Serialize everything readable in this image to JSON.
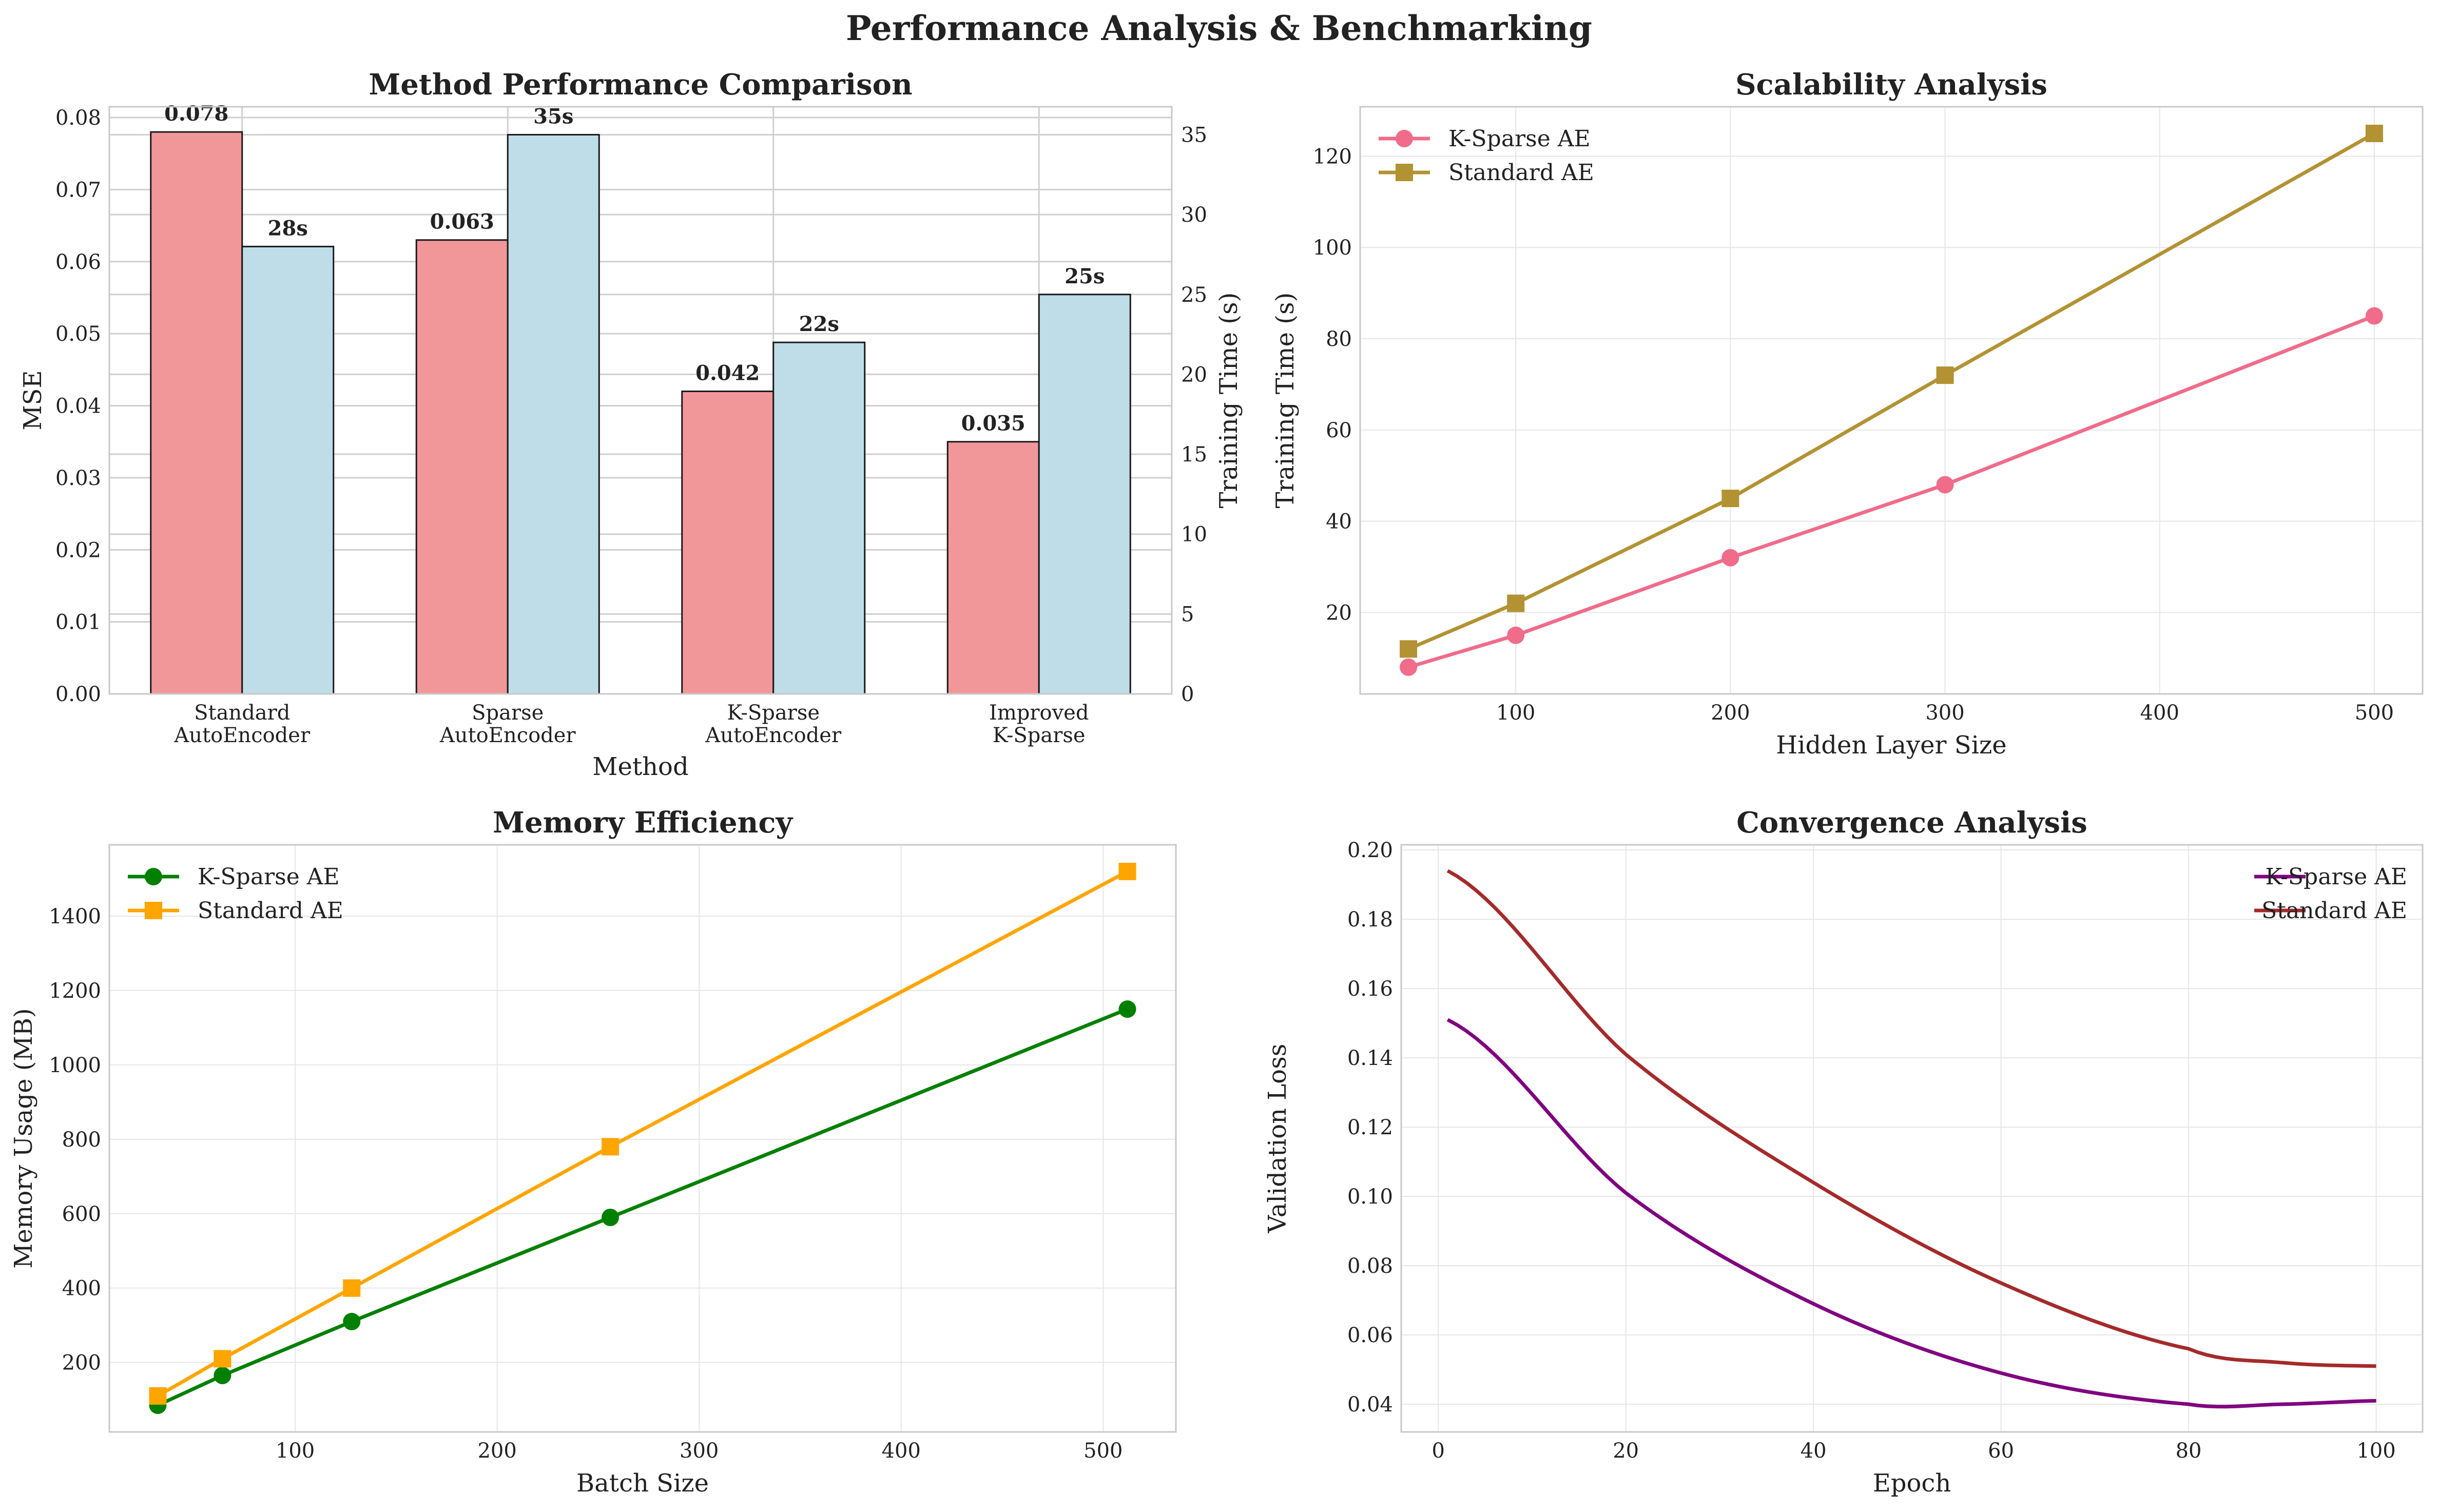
{
  "suptitle": "Performance Analysis & Benchmarking",
  "chart_data": [
    {
      "type": "bar",
      "title": "Method Performance Comparison",
      "xlabel": "Method",
      "ylabel": "MSE",
      "ylabel_right": "Training Time (s)",
      "categories": [
        [
          "Standard",
          "AutoEncoder"
        ],
        [
          "Sparse",
          "AutoEncoder"
        ],
        [
          "K-Sparse",
          "AutoEncoder"
        ],
        [
          "Improved",
          "K-Sparse"
        ]
      ],
      "series": [
        {
          "name": "MSE",
          "axis": "left",
          "color": "#f1979a",
          "values": [
            0.078,
            0.063,
            0.042,
            0.035
          ],
          "labels": [
            "0.078",
            "0.063",
            "0.042",
            "0.035"
          ]
        },
        {
          "name": "Training Time",
          "axis": "right",
          "color": "#bedde9",
          "values": [
            28,
            35,
            22,
            25
          ],
          "labels": [
            "28s",
            "35s",
            "22s",
            "25s"
          ]
        }
      ],
      "ylim": [
        0,
        0.0815
      ],
      "yticks": [
        "0.00",
        "0.01",
        "0.02",
        "0.03",
        "0.04",
        "0.05",
        "0.06",
        "0.07",
        "0.08"
      ],
      "ylim_right": [
        0,
        36.75
      ],
      "yticks_right": [
        "0",
        "5",
        "10",
        "15",
        "20",
        "25",
        "30",
        "35"
      ],
      "ylabel_color": "#ff0000",
      "ylabel_right_color": "#0000ff"
    },
    {
      "type": "line",
      "title": "Scalability Analysis",
      "xlabel": "Hidden Layer Size",
      "ylabel": "Training Time (s)",
      "x": [
        50,
        100,
        200,
        300,
        500
      ],
      "series": [
        {
          "name": "K-Sparse AE",
          "color": "#f06c8a",
          "marker": "circle",
          "values": [
            8,
            15,
            32,
            48,
            85
          ]
        },
        {
          "name": "Standard AE",
          "color": "#b29232",
          "marker": "square",
          "values": [
            12,
            22,
            45,
            72,
            125
          ]
        }
      ],
      "xlim": [
        27.5,
        522.5
      ],
      "ylim": [
        2.15,
        130.85
      ],
      "xticks": [
        "100",
        "200",
        "300",
        "400",
        "500"
      ],
      "yticks": [
        "20",
        "40",
        "60",
        "80",
        "100",
        "120"
      ],
      "legend": "upper-left",
      "grid": true
    },
    {
      "type": "line",
      "title": "Memory Efficiency",
      "xlabel": "Batch Size",
      "ylabel": "Memory Usage (MB)",
      "x": [
        32,
        64,
        128,
        256,
        512
      ],
      "series": [
        {
          "name": "K-Sparse AE",
          "color": "#008000",
          "marker": "circle",
          "values": [
            85,
            165,
            310,
            590,
            1150
          ]
        },
        {
          "name": "Standard AE",
          "color": "#ffa500",
          "marker": "square",
          "values": [
            110,
            210,
            400,
            780,
            1520
          ]
        }
      ],
      "xlim": [
        8,
        536
      ],
      "ylim": [
        13.25,
        1591.75
      ],
      "xticks": [
        "100",
        "200",
        "300",
        "400",
        "500"
      ],
      "yticks": [
        "200",
        "400",
        "600",
        "800",
        "1000",
        "1200",
        "1400"
      ],
      "legend": "upper-left",
      "grid": true
    },
    {
      "type": "line",
      "title": "Convergence Analysis",
      "xlabel": "Epoch",
      "ylabel": "Validation Loss",
      "x_range": [
        1,
        100
      ],
      "series": [
        {
          "name": "K-Sparse AE",
          "color": "#800080",
          "anchors": [
            [
              1,
              0.151
            ],
            [
              20,
              0.101
            ],
            [
              40,
              0.069
            ],
            [
              60,
              0.049
            ],
            [
              80,
              0.04
            ],
            [
              90,
              0.04
            ],
            [
              100,
              0.041
            ]
          ]
        },
        {
          "name": "Standard AE",
          "color": "#a52a2a",
          "anchors": [
            [
              1,
              0.194
            ],
            [
              20,
              0.141
            ],
            [
              40,
              0.104
            ],
            [
              60,
              0.075
            ],
            [
              80,
              0.056
            ],
            [
              90,
              0.052
            ],
            [
              100,
              0.051
            ]
          ]
        }
      ],
      "xlim": [
        -3.95,
        104.95
      ],
      "ylim": [
        0.032,
        0.2015
      ],
      "xticks": [
        "0",
        "20",
        "40",
        "60",
        "80",
        "100"
      ],
      "yticks": [
        "0.04",
        "0.06",
        "0.08",
        "0.10",
        "0.12",
        "0.14",
        "0.16",
        "0.18",
        "0.20"
      ],
      "legend": "upper-right",
      "grid": true
    }
  ]
}
